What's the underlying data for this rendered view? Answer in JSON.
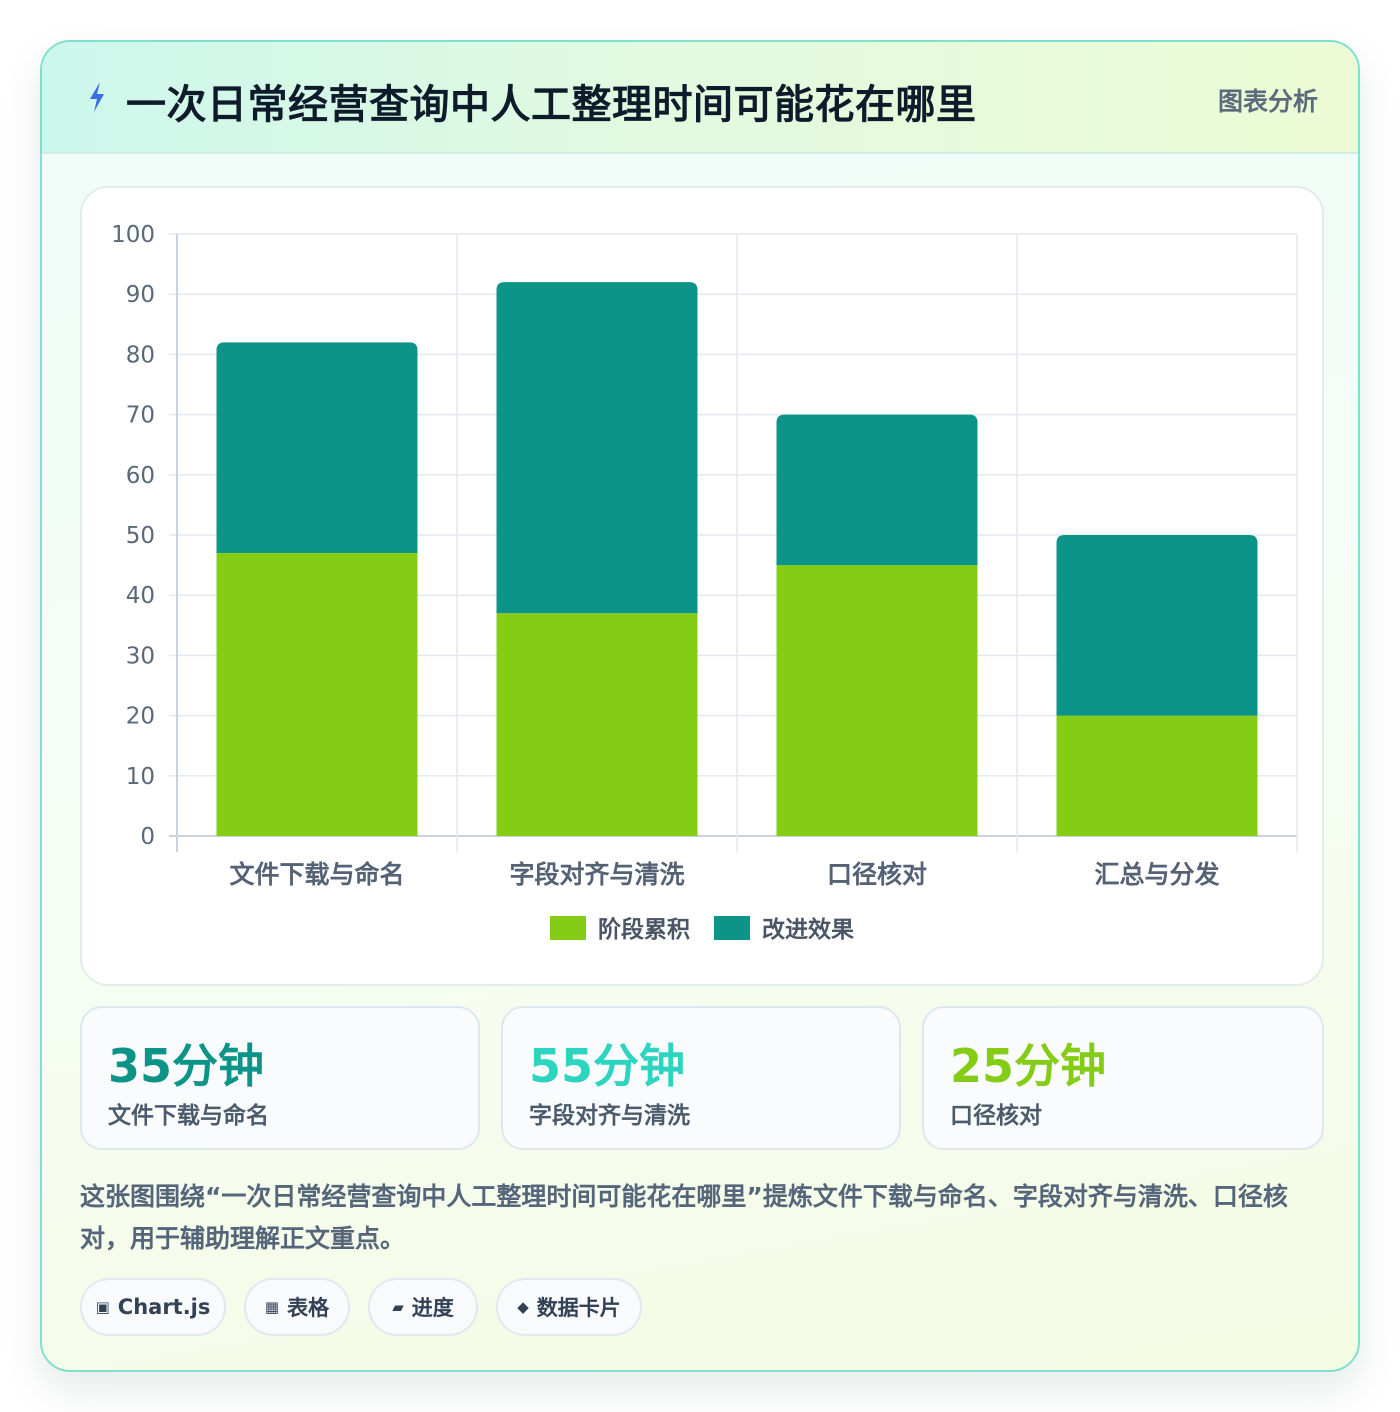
{
  "header": {
    "icon": "lightning-icon",
    "title": "一次日常经营查询中人工整理时间可能花在哪里",
    "tag": "图表分析"
  },
  "chart_data": {
    "type": "bar",
    "stacked": true,
    "categories": [
      "文件下载与命名",
      "字段对齐与清洗",
      "口径核对",
      "汇总与分发"
    ],
    "series": [
      {
        "name": "阶段累积",
        "values": [
          47,
          37,
          45,
          20
        ],
        "color": "#84cc16"
      },
      {
        "name": "改进效果",
        "values": [
          35,
          55,
          25,
          30
        ],
        "color": "#0d9488"
      }
    ],
    "ylim": [
      0,
      100
    ],
    "yticks": [
      0,
      10,
      20,
      30,
      40,
      50,
      60,
      70,
      80,
      90,
      100
    ],
    "grid": true,
    "legend_position": "bottom"
  },
  "kpis": [
    {
      "value": "35分钟",
      "label": "文件下载与命名",
      "color": "#0d9488"
    },
    {
      "value": "55分钟",
      "label": "字段对齐与清洗",
      "color": "#2dd4bf"
    },
    {
      "value": "25分钟",
      "label": "口径核对",
      "color": "#84cc16"
    }
  ],
  "summary": "这张图围绕“一次日常经营查询中人工整理时间可能花在哪里”提炼文件下载与命名、字段对齐与清洗、口径核对，用于辅助理解正文重点。",
  "chips": [
    {
      "icon": "▣",
      "icon_name": "chart-icon",
      "label": "Chart.js"
    },
    {
      "icon": "▦",
      "icon_name": "table-icon",
      "label": "表格"
    },
    {
      "icon": "▰",
      "icon_name": "progress-icon",
      "label": "进度"
    },
    {
      "icon": "◆",
      "icon_name": "data-card-icon",
      "label": "数据卡片"
    }
  ]
}
